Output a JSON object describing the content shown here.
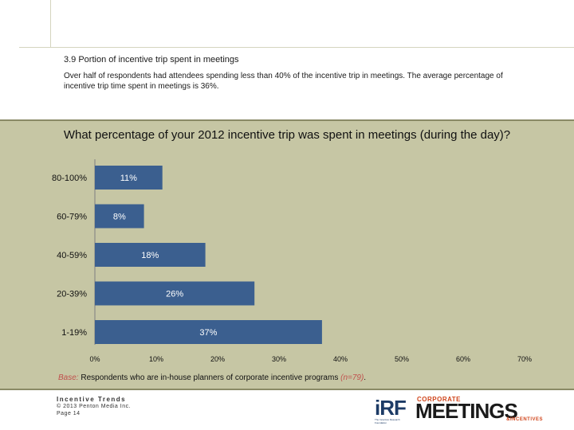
{
  "header": {
    "section_title": "3.9 Portion of incentive trip spent in meetings",
    "summary": "Over half of respondents had attendees spending less than 40% of the incentive trip in meetings. The average percentage of incentive trip time spent in meetings is 36%."
  },
  "chart_data": {
    "type": "bar",
    "orientation": "horizontal",
    "title": "What percentage of your 2012 incentive trip was spent in meetings (during the day)?",
    "categories": [
      "80-100%",
      "60-79%",
      "40-59%",
      "20-39%",
      "1-19%"
    ],
    "values": [
      11,
      8,
      18,
      26,
      37
    ],
    "data_labels": [
      "11%",
      "8%",
      "18%",
      "26%",
      "37%"
    ],
    "x_ticks": [
      "0%",
      "10%",
      "20%",
      "30%",
      "40%",
      "50%",
      "60%",
      "70%"
    ],
    "xlim": [
      0,
      70
    ],
    "bar_color": "#3b5f8f",
    "label_color": "#ffffff",
    "background": "#c6c6a4",
    "base_note": {
      "prefix": "Base:",
      "text": "Respondents who are in-house planners of corporate incentive programs",
      "n": "(n=79)",
      "suffix": "."
    }
  },
  "footer": {
    "line1": "Incentive Trends",
    "line2": "© 2013 Penton Media Inc.",
    "line3": "Page 14"
  },
  "logos": {
    "irf": "iRF",
    "irf_sub": "The Incentive Research Foundation",
    "cm_top": "CORPORATE",
    "cm_main": "MEETINGS",
    "cm_bottom": "&INCENTIVES"
  },
  "colors": {
    "accent_orange": "#d0451b",
    "irf_blue": "#1d3b66"
  }
}
